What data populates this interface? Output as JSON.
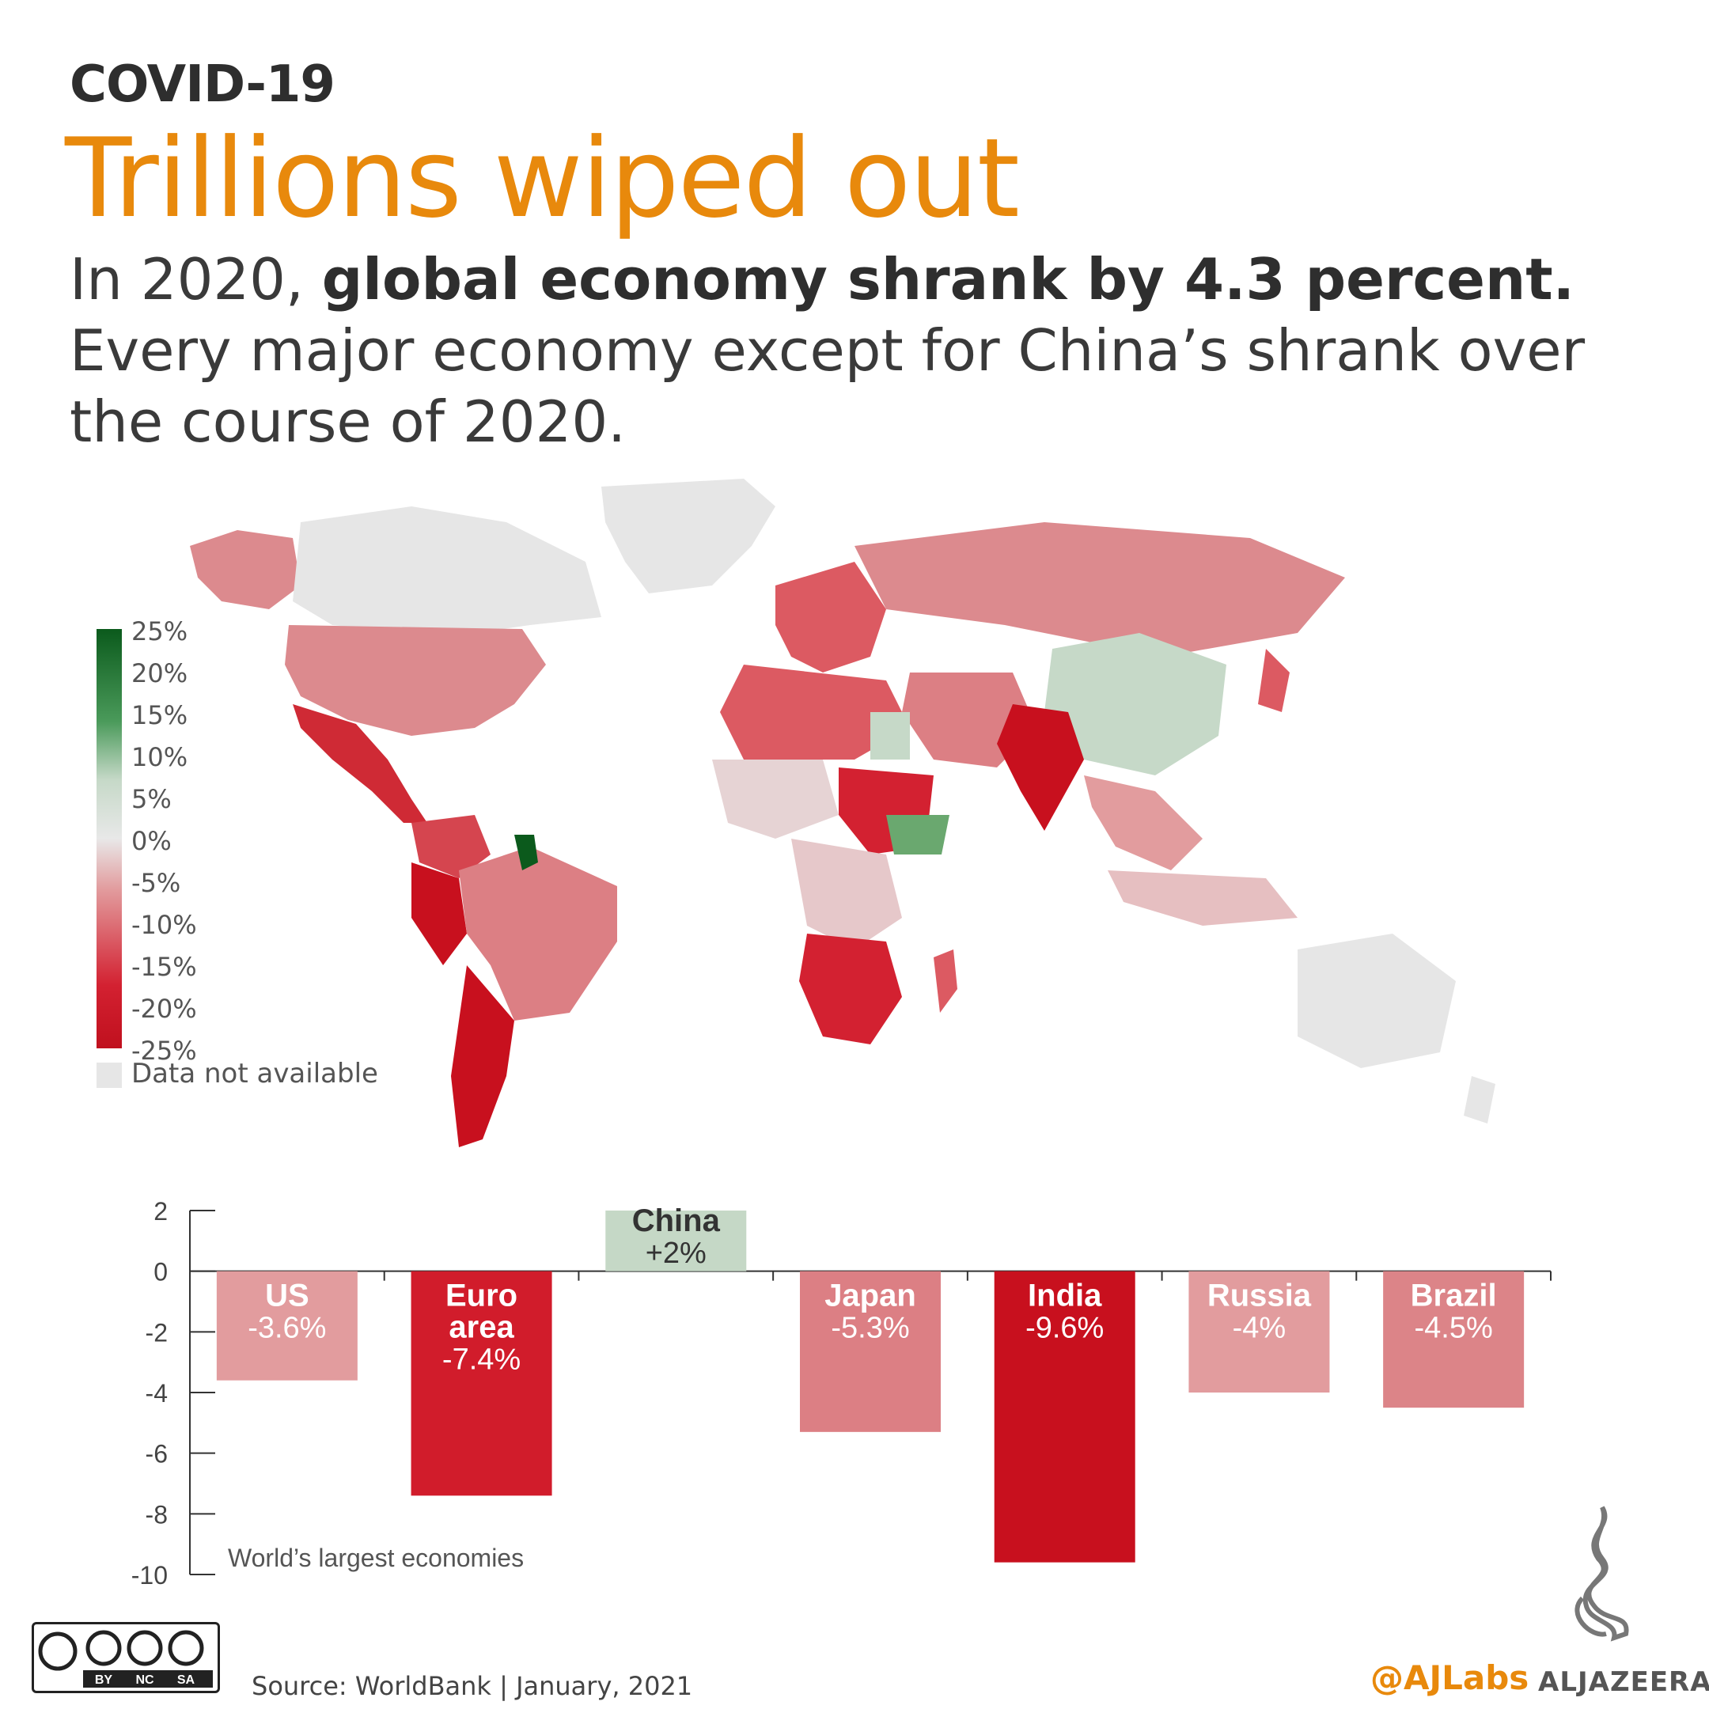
{
  "header": {
    "kicker": "COVID-19",
    "title": "Trillions wiped out",
    "subtitle_prefix": "In 2020,",
    "subtitle_bold": "global economy shrank by 4.3 percent.",
    "subtitle_rest": "Every major economy except for China’s shrank over the course of 2020."
  },
  "map": {
    "legend_ticks": [
      "25%",
      "20%",
      "15%",
      "10%",
      "5%",
      "0%",
      "-5%",
      "-10%",
      "-15%",
      "-20%",
      "-25%"
    ],
    "na_label": "Data not available",
    "colors": {
      "deep_red": "#c8101e",
      "mid_red": "#dc5a62",
      "light_red": "#e29c9e",
      "pale": "#e6e6e6",
      "light_green": "#c6d9c8",
      "mid_green": "#6aa86f",
      "deep_green": "#0b5a1c"
    }
  },
  "chart_data": {
    "type": "bar",
    "categories": [
      "US",
      "Euro area",
      "China",
      "Japan",
      "India",
      "Russia",
      "Brazil"
    ],
    "values": [
      -3.6,
      -7.4,
      2,
      -5.3,
      -9.6,
      -4,
      -4.5
    ],
    "value_labels": [
      "-3.6%",
      "-7.4%",
      "+2%",
      "-5.3%",
      "-9.6%",
      "-4%",
      "-4.5%"
    ],
    "label_lines": [
      [
        "US"
      ],
      [
        "Euro",
        "area"
      ],
      [
        "China"
      ],
      [
        "Japan"
      ],
      [
        "India"
      ],
      [
        "Russia"
      ],
      [
        "Brazil"
      ]
    ],
    "bar_colors": [
      "#e29c9e",
      "#d11c2b",
      "#c5d8c6",
      "#dc7f84",
      "#c8101e",
      "#e29c9e",
      "#dc8488"
    ],
    "ylim": [
      -10,
      2
    ],
    "yticks": [
      "2",
      "0",
      "-2",
      "-4",
      "-6",
      "-8",
      "-10"
    ],
    "ytick_values": [
      2,
      0,
      -2,
      -4,
      -6,
      -8,
      -10
    ],
    "annotation": "World’s largest economies",
    "xlabel": "",
    "ylabel": ""
  },
  "footer": {
    "source": "Source: WorldBank  | January, 2021",
    "handle": "@AJLabs",
    "brand": "ALJAZEERA",
    "license_parts": [
      "BY",
      "NC",
      "SA"
    ]
  }
}
